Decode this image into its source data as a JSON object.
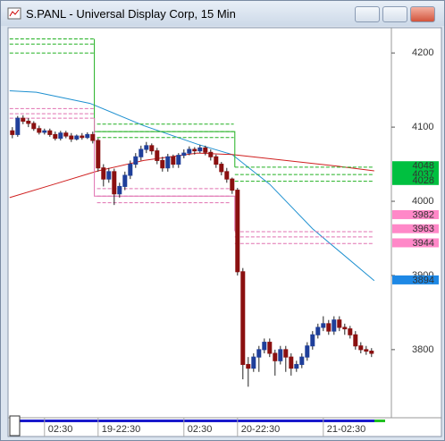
{
  "chart_data": {
    "type": "candlestick",
    "title": "S.PANL - Universal Display Corp, 15 Min",
    "open": [
      4095,
      4090,
      4112,
      4108,
      4105,
      4098,
      4093,
      4095,
      4090,
      4085,
      4092,
      4088,
      4084,
      4088,
      4086,
      4090,
      4082,
      4045,
      4030,
      4040,
      4010,
      4020,
      4035,
      4050,
      4060,
      4070,
      4075,
      4068,
      4055,
      4045,
      4060,
      4050,
      4062,
      4065,
      4070,
      4068,
      4072,
      4066,
      4060,
      4050,
      4040,
      4030,
      4015,
      3905,
      3780,
      3775,
      3790,
      3800,
      3810,
      3795,
      3785,
      3800,
      3790,
      3775,
      3780,
      3790,
      3805,
      3820,
      3830,
      3835,
      3825,
      3840,
      3830,
      3828,
      3820,
      3805,
      3800,
      3798
    ],
    "high": [
      4100,
      4115,
      4116,
      4112,
      4108,
      4102,
      4098,
      4098,
      4094,
      4095,
      4095,
      4092,
      4090,
      4092,
      4093,
      4094,
      4085,
      4050,
      4045,
      4044,
      4025,
      4040,
      4055,
      4065,
      4075,
      4080,
      4078,
      4072,
      4060,
      4064,
      4063,
      4065,
      4070,
      4074,
      4073,
      4076,
      4075,
      4070,
      4063,
      4053,
      4045,
      4032,
      4018,
      3910,
      3790,
      3795,
      3805,
      3815,
      3815,
      3800,
      3805,
      3805,
      3795,
      3785,
      3795,
      3810,
      3825,
      3835,
      3845,
      3840,
      3845,
      3845,
      3835,
      3832,
      3825,
      3810,
      3805,
      3802
    ],
    "low": [
      4085,
      4087,
      4104,
      4100,
      4095,
      4090,
      4090,
      4087,
      4082,
      4082,
      4085,
      4080,
      4082,
      4083,
      4084,
      4078,
      4040,
      4020,
      4025,
      3995,
      4005,
      4015,
      4030,
      4045,
      4055,
      4065,
      4063,
      4050,
      4040,
      4040,
      4045,
      4045,
      4058,
      4062,
      4063,
      4065,
      4062,
      4055,
      4045,
      4035,
      4025,
      4010,
      3900,
      3760,
      3750,
      3770,
      3770,
      3795,
      3790,
      3765,
      3780,
      3770,
      3765,
      3770,
      3775,
      3785,
      3800,
      3815,
      3825,
      3820,
      3820,
      3825,
      3820,
      3815,
      3800,
      3795,
      3793,
      3790
    ],
    "close": [
      4090,
      4112,
      4108,
      4105,
      4098,
      4093,
      4095,
      4090,
      4085,
      4092,
      4088,
      4084,
      4088,
      4086,
      4090,
      4082,
      4045,
      4030,
      4040,
      4010,
      4020,
      4035,
      4050,
      4060,
      4070,
      4075,
      4068,
      4055,
      4045,
      4060,
      4050,
      4062,
      4065,
      4070,
      4068,
      4072,
      4066,
      4060,
      4050,
      4040,
      4030,
      4015,
      3905,
      3780,
      3775,
      3790,
      3800,
      3810,
      3795,
      3785,
      3800,
      3790,
      3775,
      3780,
      3790,
      3805,
      3820,
      3830,
      3835,
      3825,
      3840,
      3830,
      3828,
      3820,
      3805,
      3800,
      3798,
      3795
    ],
    "up_color": "#1f3f9a",
    "down_color": "#8b1010",
    "lines": [
      {
        "color": "#1e90d0",
        "dash": false,
        "x": [
          -0.5,
          4.5,
          14.5,
          24.5,
          34.5,
          41,
          48,
          56,
          67.5
        ],
        "values": [
          4149,
          4147,
          4132,
          4102,
          4077,
          4063,
          4023,
          3963,
          3893
        ]
      },
      {
        "color": "#d02020",
        "dash": false,
        "x": [
          -0.5,
          7.8,
          16,
          24.5,
          34.5,
          41,
          51,
          61,
          67.5
        ],
        "values": [
          4005,
          4023,
          4041,
          4055,
          4065,
          4063,
          4055,
          4047,
          4041
        ]
      },
      {
        "color": "#20b020",
        "dash": false,
        "x": [
          15.3,
          15.3,
          41.5,
          41.5
        ],
        "values": [
          4219,
          4094,
          4094,
          4046
        ]
      },
      {
        "color": "#e070b0",
        "dash": false,
        "x": [
          15.3,
          15.3,
          41.5,
          41.5
        ],
        "values": [
          4112,
          4007,
          4007,
          3960
        ]
      },
      {
        "color": "#20b020",
        "dash": true,
        "x": [
          -0.5,
          15.3
        ],
        "values": [
          4219,
          4219
        ]
      },
      {
        "color": "#20b020",
        "dash": true,
        "x": [
          -0.5,
          15.3
        ],
        "values": [
          4212,
          4212
        ]
      },
      {
        "color": "#20b020",
        "dash": true,
        "x": [
          -0.5,
          15.3
        ],
        "values": [
          4200,
          4200
        ]
      },
      {
        "color": "#20b020",
        "dash": true,
        "x": [
          15.8,
          41.3
        ],
        "values": [
          4104,
          4104
        ]
      },
      {
        "color": "#20b020",
        "dash": true,
        "x": [
          15.8,
          41.3
        ],
        "values": [
          4094,
          4094
        ]
      },
      {
        "color": "#20b020",
        "dash": true,
        "x": [
          15.8,
          41.3
        ],
        "values": [
          4086,
          4086
        ]
      },
      {
        "color": "#20b020",
        "dash": true,
        "x": [
          41.5,
          67.3
        ],
        "values": [
          4046,
          4046
        ]
      },
      {
        "color": "#20b020",
        "dash": true,
        "x": [
          41.5,
          67.3
        ],
        "values": [
          4036,
          4036
        ]
      },
      {
        "color": "#20b020",
        "dash": true,
        "x": [
          41.5,
          67.3
        ],
        "values": [
          4027,
          4027
        ]
      },
      {
        "color": "#e070b0",
        "dash": true,
        "x": [
          -0.5,
          15.3
        ],
        "values": [
          4125,
          4125
        ]
      },
      {
        "color": "#e070b0",
        "dash": true,
        "x": [
          -0.5,
          15.3
        ],
        "values": [
          4118,
          4118
        ]
      },
      {
        "color": "#e070b0",
        "dash": true,
        "x": [
          -0.5,
          15.3
        ],
        "values": [
          4112,
          4112
        ]
      },
      {
        "color": "#e070b0",
        "dash": true,
        "x": [
          15.8,
          40.8
        ],
        "values": [
          4017,
          4017
        ]
      },
      {
        "color": "#e070b0",
        "dash": true,
        "x": [
          15.8,
          40.8
        ],
        "values": [
          4007,
          4007
        ]
      },
      {
        "color": "#e070b0",
        "dash": true,
        "x": [
          15.8,
          40.8
        ],
        "values": [
          3998,
          3998
        ]
      },
      {
        "color": "#e070b0",
        "dash": true,
        "x": [
          41.5,
          67.3
        ],
        "values": [
          3959,
          3959
        ]
      },
      {
        "color": "#e070b0",
        "dash": true,
        "x": [
          41.5,
          67.3
        ],
        "values": [
          3952,
          3952
        ]
      },
      {
        "color": "#e070b0",
        "dash": true,
        "x": [
          41.5,
          67.3
        ],
        "values": [
          3943,
          3943
        ]
      }
    ],
    "price_labels": [
      {
        "value": 4048,
        "color": "#00c040"
      },
      {
        "value": 4037,
        "color": "#00c040"
      },
      {
        "value": 4028,
        "color": "#00c040"
      },
      {
        "value": 3982,
        "color": "#ff88c8"
      },
      {
        "value": 3963,
        "color": "#ff88c8"
      },
      {
        "value": 3944,
        "color": "#ff88c8"
      },
      {
        "value": 3894,
        "color": "#1e88e5"
      }
    ],
    "xlim": [
      -0.8,
      70.7
    ],
    "ylim": [
      3713,
      4234
    ],
    "yticks": [
      3800,
      3900,
      4000,
      4100,
      4200
    ],
    "xticks": [
      {
        "value": 6,
        "label": "02:30"
      },
      {
        "value": 16,
        "label": "19-22:30"
      },
      {
        "value": 32,
        "label": "02:30"
      },
      {
        "value": 42,
        "label": "20-22:30"
      },
      {
        "value": 58,
        "label": "21-02:30"
      }
    ]
  }
}
